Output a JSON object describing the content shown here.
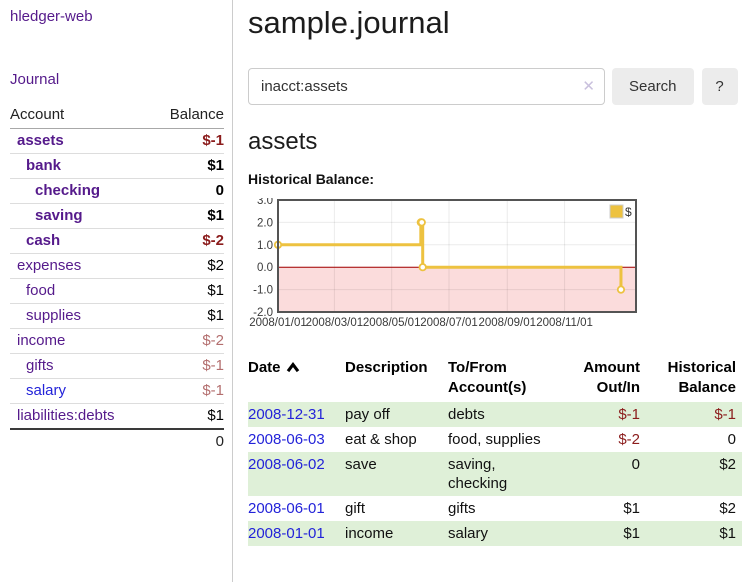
{
  "colors": {
    "link-purple": "#551A8B",
    "link-blue": "#2323d9",
    "neg-strong": "#8b1c1c",
    "neg-muted": "#b36e6e",
    "row-green": "#dff0d8",
    "series-gold": "#edc240",
    "btn-gray": "#ececec",
    "clear-x": "#c9c0dd"
  },
  "sidebar": {
    "app_title": "hledger-web",
    "nav": {
      "journal": "Journal"
    },
    "accounts": {
      "header": {
        "account": "Account",
        "balance": "Balance"
      },
      "rows": [
        {
          "name": "assets",
          "indent": 1,
          "bold": true,
          "balance": "$-1",
          "tone": "neg-strong"
        },
        {
          "name": "bank",
          "indent": 2,
          "bold": true,
          "balance": "$1",
          "tone": "pos"
        },
        {
          "name": "checking",
          "indent": 3,
          "bold": true,
          "balance": "0",
          "tone": "pos"
        },
        {
          "name": "saving",
          "indent": 3,
          "bold": true,
          "balance": "$1",
          "tone": "pos"
        },
        {
          "name": "cash",
          "indent": 2,
          "bold": true,
          "balance": "$-2",
          "tone": "neg-strong"
        },
        {
          "name": "expenses",
          "indent": 1,
          "bold": false,
          "balance": "$2",
          "tone": "pos"
        },
        {
          "name": "food",
          "indent": 2,
          "bold": false,
          "balance": "$1",
          "tone": "pos"
        },
        {
          "name": "supplies",
          "indent": 2,
          "bold": false,
          "balance": "$1",
          "tone": "pos"
        },
        {
          "name": "income",
          "indent": 1,
          "bold": false,
          "balance": "$-2",
          "tone": "neg-muted"
        },
        {
          "name": "gifts",
          "indent": 2,
          "bold": false,
          "balance": "$-1",
          "tone": "neg-muted"
        },
        {
          "name": "salary",
          "indent": 2,
          "bold": false,
          "balance": "$-1",
          "tone": "neg-muted",
          "link_color": "blue"
        },
        {
          "name": "liabilities:debts",
          "indent": 1,
          "bold": false,
          "balance": "$1",
          "tone": "pos"
        }
      ],
      "total": "0"
    }
  },
  "main": {
    "title": "sample.journal",
    "search": {
      "value": "inacct:assets",
      "clear_icon": "✕",
      "search_button": "Search",
      "help_button": "?"
    },
    "account_heading": "assets",
    "chart_label": "Historical Balance:"
  },
  "chart_data": {
    "type": "line",
    "step": true,
    "title": "Historical Balance:",
    "legend": {
      "label": "$",
      "position": "top-right"
    },
    "series": [
      {
        "name": "$",
        "color": "#edc240",
        "points": [
          {
            "date": "2008-01-01",
            "value": 1
          },
          {
            "date": "2008-06-01",
            "value": 2
          },
          {
            "date": "2008-06-02",
            "value": 2
          },
          {
            "date": "2008-06-03",
            "value": 0
          },
          {
            "date": "2008-12-31",
            "value": -1
          }
        ]
      }
    ],
    "x_domain": [
      "2008-01-01",
      "2009-01-16"
    ],
    "ylim": [
      -2,
      3
    ],
    "y_ticks": [
      {
        "label": "3.0",
        "value": 3
      },
      {
        "label": "2.0",
        "value": 2
      },
      {
        "label": "1.0",
        "value": 1
      },
      {
        "label": "0.0",
        "value": 0
      },
      {
        "label": "-1.0",
        "value": -1
      },
      {
        "label": "-2.0",
        "value": -2
      }
    ],
    "x_ticks": [
      {
        "label": "2008/01/01",
        "date": "2008-01-01"
      },
      {
        "label": "2008/03/01",
        "date": "2008-03-01"
      },
      {
        "label": "2008/05/01",
        "date": "2008-05-01"
      },
      {
        "label": "2008/07/01",
        "date": "2008-07-01"
      },
      {
        "label": "2008/09/01",
        "date": "2008-09-01"
      },
      {
        "label": "2008/11/01",
        "date": "2008-11-01"
      }
    ],
    "grid": true,
    "negative_region": {
      "color": "#fbdcdc",
      "zero_line_color": "#a40000"
    },
    "border_color": "#545454"
  },
  "transactions": {
    "columns": [
      {
        "label": "Date",
        "sorted": "ascending"
      },
      {
        "label": "Description"
      },
      {
        "label": "To/From Account(s)"
      },
      {
        "label": "Amount Out/In"
      },
      {
        "label": "Historical Balance"
      }
    ],
    "rows": [
      {
        "date": "2008-12-31",
        "description": "pay off",
        "accounts": "debts",
        "amount": "$-1",
        "amount_tone": "neg",
        "balance": "$-1",
        "balance_tone": "neg",
        "shaded": true
      },
      {
        "date": "2008-06-03",
        "description": "eat & shop",
        "accounts": "food, supplies",
        "amount": "$-2",
        "amount_tone": "neg",
        "balance": "0",
        "balance_tone": "pos",
        "shaded": false
      },
      {
        "date": "2008-06-02",
        "description": "save",
        "accounts": "saving, checking",
        "amount": "0",
        "amount_tone": "pos",
        "balance": "$2",
        "balance_tone": "pos",
        "shaded": true
      },
      {
        "date": "2008-06-01",
        "description": "gift",
        "accounts": "gifts",
        "amount": "$1",
        "amount_tone": "pos",
        "balance": "$2",
        "balance_tone": "pos",
        "shaded": false
      },
      {
        "date": "2008-01-01",
        "description": "income",
        "accounts": "salary",
        "amount": "$1",
        "amount_tone": "pos",
        "balance": "$1",
        "balance_tone": "pos",
        "shaded": true
      }
    ]
  }
}
